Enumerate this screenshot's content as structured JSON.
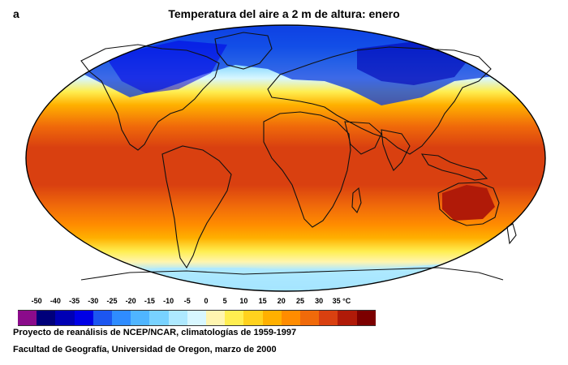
{
  "panel_letter": "a",
  "title": "Temperatura del aire a 2 m de altura: enero",
  "legend": {
    "ticks": [
      "-50",
      "-40",
      "-35",
      "-30",
      "-25",
      "-20",
      "-15",
      "-10",
      "-5",
      "0",
      "5",
      "10",
      "15",
      "20",
      "25",
      "30",
      "35 °C"
    ],
    "colors": [
      "#8b0b8b",
      "#00007a",
      "#0000b4",
      "#0000e6",
      "#1c56f0",
      "#2f8cff",
      "#4fb5ff",
      "#78d2ff",
      "#aee9ff",
      "#d8f7ff",
      "#fff5b0",
      "#ffee50",
      "#ffd21e",
      "#ffb000",
      "#ff8c00",
      "#f06a0a",
      "#d94010",
      "#b01a08",
      "#7c0000"
    ]
  },
  "credits": {
    "line1": "Proyecto de reanálisis de NCEP/NCAR, climatologías de 1959-1997",
    "line2": "Facultad de Geografía, Universidad de Oregon, marzo de 2000"
  }
}
